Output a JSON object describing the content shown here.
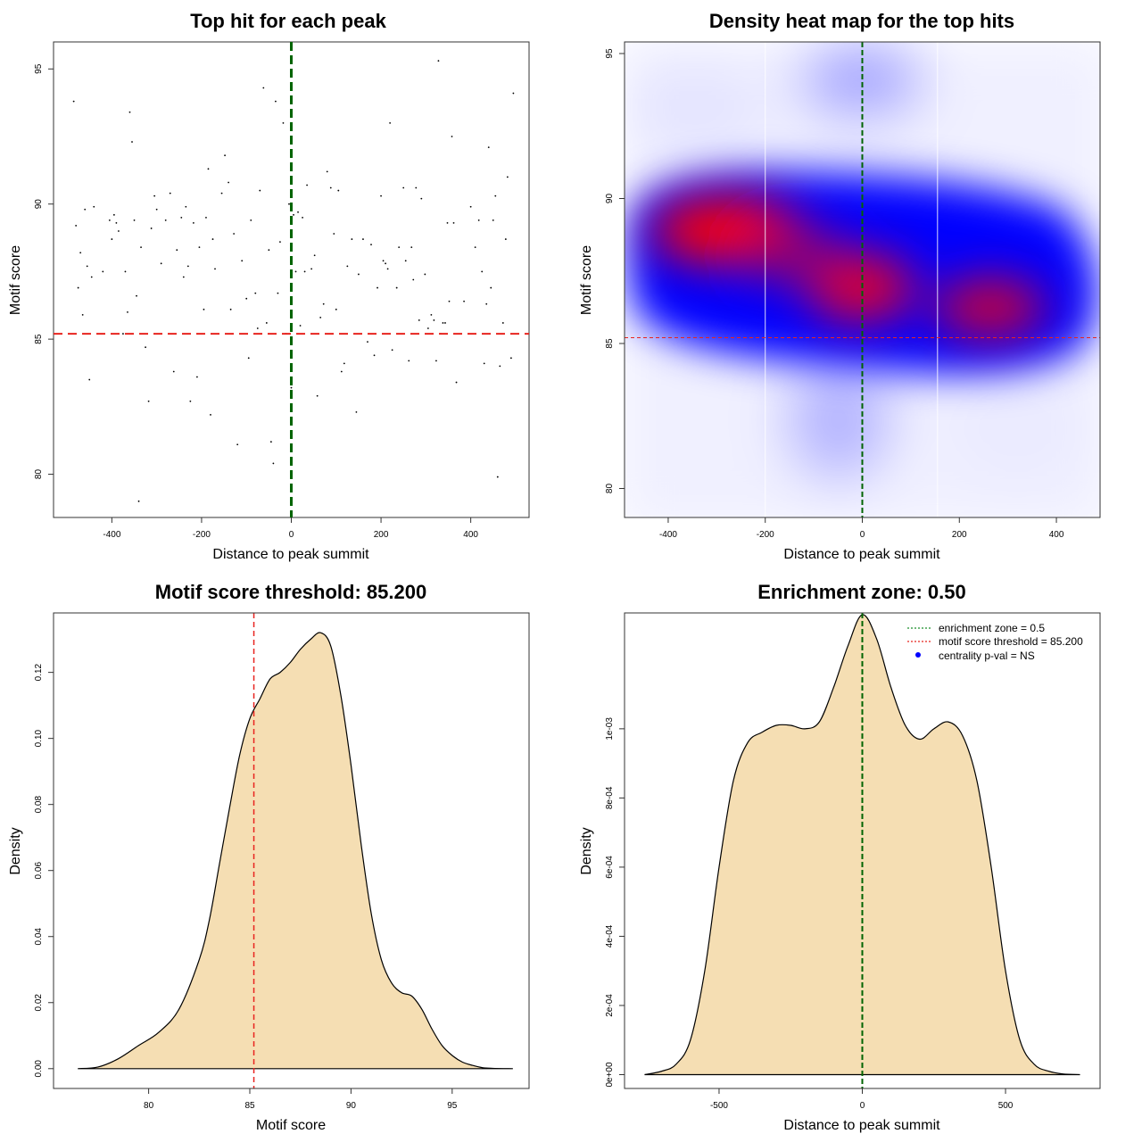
{
  "colors": {
    "green_line": "#006400",
    "red_line": "#e8241f",
    "fill": "#f5deb3",
    "heat_high": "#ff0000",
    "heat_mid": "#0000ff",
    "heat_low": "#ffffff"
  },
  "chart_data": [
    {
      "type": "scatter",
      "title": "Top hit for each peak",
      "xlabel": "Distance to peak summit",
      "ylabel": "Motif score",
      "xlim": [
        -530,
        530
      ],
      "ylim": [
        78.4,
        96.0
      ],
      "xticks": [
        "-400",
        "-200",
        "0",
        "200",
        "400"
      ],
      "yticks": [
        "80",
        "85",
        "90",
        "95"
      ],
      "vline": 0,
      "hline": 85.2,
      "points": [
        [
          -485,
          93.8
        ],
        [
          -480,
          89.2
        ],
        [
          -475,
          86.9
        ],
        [
          -470,
          88.2
        ],
        [
          -465,
          85.9
        ],
        [
          -460,
          89.8
        ],
        [
          -455,
          87.7
        ],
        [
          -450,
          83.5
        ],
        [
          -445,
          87.3
        ],
        [
          -440,
          89.9
        ],
        [
          -420,
          87.5
        ],
        [
          -405,
          89.4
        ],
        [
          -400,
          88.7
        ],
        [
          -395,
          89.6
        ],
        [
          -390,
          89.3
        ],
        [
          -385,
          89.0
        ],
        [
          -375,
          85.2
        ],
        [
          -370,
          87.5
        ],
        [
          -365,
          86.0
        ],
        [
          -360,
          93.4
        ],
        [
          -355,
          92.3
        ],
        [
          -350,
          89.4
        ],
        [
          -345,
          86.6
        ],
        [
          -340,
          79.0
        ],
        [
          -335,
          88.4
        ],
        [
          -325,
          84.7
        ],
        [
          -318,
          82.7
        ],
        [
          -312,
          89.1
        ],
        [
          -305,
          90.3
        ],
        [
          -300,
          89.8
        ],
        [
          -290,
          87.8
        ],
        [
          -280,
          89.4
        ],
        [
          -270,
          90.4
        ],
        [
          -262,
          83.8
        ],
        [
          -255,
          88.3
        ],
        [
          -245,
          89.5
        ],
        [
          -240,
          87.3
        ],
        [
          -235,
          89.9
        ],
        [
          -230,
          87.7
        ],
        [
          -225,
          82.7
        ],
        [
          -218,
          89.3
        ],
        [
          -210,
          83.6
        ],
        [
          -205,
          88.4
        ],
        [
          -195,
          86.1
        ],
        [
          -190,
          89.5
        ],
        [
          -185,
          91.3
        ],
        [
          -180,
          82.2
        ],
        [
          -175,
          88.7
        ],
        [
          -170,
          87.6
        ],
        [
          -155,
          90.4
        ],
        [
          -148,
          91.8
        ],
        [
          -140,
          90.8
        ],
        [
          -135,
          86.1
        ],
        [
          -128,
          88.9
        ],
        [
          -120,
          81.1
        ],
        [
          -110,
          87.9
        ],
        [
          -100,
          86.5
        ],
        [
          -95,
          84.3
        ],
        [
          -90,
          89.4
        ],
        [
          -80,
          86.7
        ],
        [
          -75,
          85.4
        ],
        [
          -70,
          90.5
        ],
        [
          -62,
          94.3
        ],
        [
          -55,
          85.6
        ],
        [
          -50,
          88.3
        ],
        [
          -45,
          81.2
        ],
        [
          -40,
          80.4
        ],
        [
          -35,
          93.8
        ],
        [
          -30,
          86.7
        ],
        [
          -25,
          88.6
        ],
        [
          -18,
          93.0
        ],
        [
          -12,
          85.2
        ],
        [
          -5,
          90.0
        ],
        [
          0,
          83.2
        ],
        [
          5,
          89.6
        ],
        [
          10,
          87.5
        ],
        [
          15,
          89.7
        ],
        [
          20,
          85.5
        ],
        [
          25,
          89.5
        ],
        [
          30,
          87.5
        ],
        [
          35,
          90.7
        ],
        [
          45,
          87.6
        ],
        [
          52,
          88.1
        ],
        [
          58,
          82.9
        ],
        [
          65,
          85.8
        ],
        [
          72,
          86.3
        ],
        [
          80,
          91.2
        ],
        [
          88,
          90.6
        ],
        [
          95,
          88.9
        ],
        [
          100,
          86.1
        ],
        [
          105,
          90.5
        ],
        [
          112,
          83.8
        ],
        [
          118,
          84.1
        ],
        [
          125,
          87.7
        ],
        [
          135,
          88.7
        ],
        [
          145,
          82.3
        ],
        [
          150,
          87.4
        ],
        [
          160,
          88.7
        ],
        [
          170,
          84.9
        ],
        [
          178,
          88.5
        ],
        [
          185,
          84.4
        ],
        [
          192,
          86.9
        ],
        [
          200,
          90.3
        ],
        [
          205,
          87.9
        ],
        [
          210,
          87.8
        ],
        [
          215,
          87.6
        ],
        [
          220,
          93.0
        ],
        [
          225,
          84.6
        ],
        [
          235,
          86.9
        ],
        [
          240,
          88.4
        ],
        [
          250,
          90.6
        ],
        [
          255,
          87.9
        ],
        [
          262,
          84.2
        ],
        [
          268,
          88.4
        ],
        [
          272,
          87.2
        ],
        [
          278,
          90.6
        ],
        [
          285,
          85.7
        ],
        [
          290,
          90.2
        ],
        [
          298,
          87.4
        ],
        [
          305,
          85.4
        ],
        [
          312,
          85.9
        ],
        [
          318,
          85.7
        ],
        [
          323,
          84.2
        ],
        [
          328,
          95.3
        ],
        [
          333,
          85.2
        ],
        [
          338,
          85.6
        ],
        [
          343,
          85.6
        ],
        [
          348,
          89.3
        ],
        [
          352,
          86.4
        ],
        [
          358,
          92.5
        ],
        [
          362,
          89.3
        ],
        [
          368,
          83.4
        ],
        [
          385,
          86.4
        ],
        [
          400,
          89.9
        ],
        [
          410,
          88.4
        ],
        [
          418,
          89.4
        ],
        [
          425,
          87.5
        ],
        [
          430,
          84.1
        ],
        [
          435,
          86.3
        ],
        [
          440,
          92.1
        ],
        [
          445,
          86.9
        ],
        [
          450,
          89.4
        ],
        [
          455,
          90.3
        ],
        [
          460,
          79.9
        ],
        [
          465,
          84.0
        ],
        [
          472,
          85.6
        ],
        [
          478,
          88.7
        ],
        [
          482,
          91.0
        ],
        [
          490,
          84.3
        ],
        [
          495,
          94.1
        ]
      ]
    },
    {
      "type": "heatmap",
      "title": "Density heat map for the top hits",
      "xlabel": "Distance to peak summit",
      "ylabel": "Motif score",
      "xlim": [
        -490,
        490
      ],
      "ylim": [
        79.0,
        95.4
      ],
      "xticks": [
        "-400",
        "-200",
        "0",
        "200",
        "400"
      ],
      "yticks": [
        "80",
        "85",
        "90",
        "95"
      ],
      "vline": 0,
      "hline": 85.2,
      "white_vlines": [
        -200,
        155
      ]
    },
    {
      "type": "area",
      "title": "Motif score threshold: 85.200",
      "xlabel": "Motif score",
      "ylabel": "Density",
      "xlim": [
        75.3,
        98.8
      ],
      "ylim": [
        -0.006,
        0.138
      ],
      "xticks": [
        "80",
        "85",
        "90",
        "95"
      ],
      "yticks": [
        "0.00",
        "0.02",
        "0.04",
        "0.06",
        "0.08",
        "0.10",
        "0.12"
      ],
      "vline": 85.2,
      "x": [
        76.5,
        77.5,
        78.5,
        79.5,
        80.5,
        81.5,
        82.5,
        83.0,
        83.5,
        84.0,
        84.5,
        85.0,
        85.5,
        86.0,
        86.5,
        87.0,
        87.5,
        88.0,
        88.5,
        89.0,
        89.5,
        90.0,
        90.5,
        91.0,
        91.5,
        92.0,
        92.5,
        93.0,
        93.5,
        94.0,
        94.5,
        95.0,
        95.5,
        96.0,
        96.5,
        97.0,
        98.0
      ],
      "y": [
        0.0,
        0.0005,
        0.003,
        0.007,
        0.011,
        0.018,
        0.033,
        0.045,
        0.062,
        0.079,
        0.095,
        0.106,
        0.112,
        0.118,
        0.12,
        0.123,
        0.127,
        0.13,
        0.132,
        0.128,
        0.113,
        0.092,
        0.068,
        0.047,
        0.033,
        0.026,
        0.023,
        0.022,
        0.018,
        0.012,
        0.007,
        0.004,
        0.002,
        0.001,
        0.0003,
        0.0001,
        0.0
      ]
    },
    {
      "type": "area",
      "title": "Enrichment zone: 0.50",
      "xlabel": "Distance to peak summit",
      "ylabel": "Density",
      "xlim": [
        -830,
        830
      ],
      "ylim": [
        -4e-05,
        0.001335
      ],
      "xticks": [
        "-500",
        "0",
        "500"
      ],
      "yticks": [
        "0e+00",
        "2e-04",
        "4e-04",
        "6e-04",
        "8e-04",
        "1e-03"
      ],
      "vline": 0,
      "x": [
        -760,
        -700,
        -650,
        -600,
        -550,
        -500,
        -450,
        -400,
        -350,
        -300,
        -250,
        -200,
        -150,
        -100,
        -50,
        0,
        50,
        100,
        150,
        200,
        250,
        300,
        350,
        400,
        450,
        500,
        550,
        600,
        650,
        700,
        760
      ],
      "y": [
        0.0,
        1e-05,
        3e-05,
        0.0001,
        0.0003,
        0.0006,
        0.00085,
        0.00096,
        0.00099,
        0.00101,
        0.00101,
        0.001,
        0.00102,
        0.00112,
        0.00124,
        0.00133,
        0.00126,
        0.00112,
        0.00101,
        0.00097,
        0.001,
        0.00102,
        0.00098,
        0.00085,
        0.0006,
        0.0003,
        0.0001,
        3e-05,
        1e-05,
        2e-06,
        0.0
      ],
      "legend": [
        {
          "label": "enrichment zone = 0.5",
          "style": "green-dotted"
        },
        {
          "label": "motif score threshold = 85.200",
          "style": "red-dotted"
        },
        {
          "label": "centrality p-val = NS",
          "style": "blue-dot"
        }
      ],
      "legend_placement": "top-right"
    }
  ]
}
